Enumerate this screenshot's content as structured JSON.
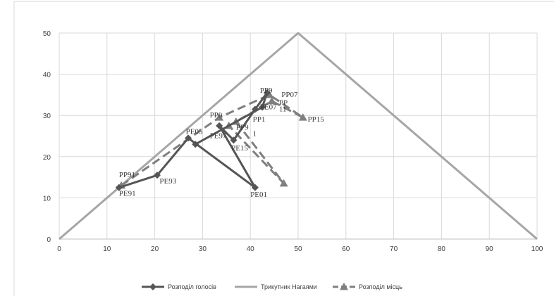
{
  "chart_data": {
    "type": "scatter",
    "title": "",
    "xlabel": "",
    "ylabel": "",
    "xlim": [
      0,
      100
    ],
    "ylim": [
      0,
      50
    ],
    "x_ticks": [
      "0",
      "10",
      "20",
      "30",
      "40",
      "50",
      "60",
      "70",
      "80",
      "90",
      "100"
    ],
    "y_ticks": [
      "0",
      "10",
      "20",
      "30",
      "40",
      "50"
    ],
    "grid": true,
    "legend_position": "bottom",
    "series": [
      {
        "name": "Розподіл голосів",
        "color": "#555555",
        "style": "solid",
        "marker": "diamond",
        "points": [
          {
            "x": 12.5,
            "y": 12.5
          },
          {
            "x": 20.5,
            "y": 15.5
          },
          {
            "x": 27,
            "y": 24.5
          },
          {
            "x": 41,
            "y": 12.5
          },
          {
            "x": 33.5,
            "y": 27.5
          },
          {
            "x": 36.5,
            "y": 24
          },
          {
            "x": 41,
            "y": 31.5
          },
          {
            "x": 43.5,
            "y": 35.5
          },
          {
            "x": 42.5,
            "y": 32
          },
          {
            "x": 28.5,
            "y": 23
          }
        ]
      },
      {
        "name": "Трикутник Нагаями",
        "color": "#a6a6a6",
        "style": "solid",
        "marker": "none",
        "points": [
          {
            "x": 0,
            "y": 0
          },
          {
            "x": 50,
            "y": 50
          },
          {
            "x": 100,
            "y": 0
          }
        ]
      },
      {
        "name": "Розподіл місць",
        "color": "#7f7f7f",
        "style": "dashed",
        "marker": "triangle",
        "points": [
          {
            "x": 13,
            "y": 13
          },
          {
            "x": 33.5,
            "y": 29.5
          },
          {
            "x": 44,
            "y": 35
          },
          {
            "x": 51,
            "y": 29.5
          },
          {
            "x": 44.5,
            "y": 33.5
          },
          {
            "x": 37,
            "y": 28.5
          },
          {
            "x": 47,
            "y": 13.5
          },
          {
            "x": 35.5,
            "y": 27.5
          }
        ]
      }
    ],
    "point_labels": [
      {
        "text": "РР91",
        "x": 12.5,
        "y": 15
      },
      {
        "text": "РЕ91",
        "x": 12.5,
        "y": 10.5
      },
      {
        "text": "РЕ93",
        "x": 21,
        "y": 13.5
      },
      {
        "text": "РЕ05",
        "x": 26.5,
        "y": 25.5
      },
      {
        "text": "РЕ97",
        "x": 31.5,
        "y": 24.5
      },
      {
        "text": "РР0",
        "x": 31.5,
        "y": 29.5
      },
      {
        "text": "РР9",
        "x": 37,
        "y": 26.5
      },
      {
        "text": "1",
        "x": 40.5,
        "y": 25
      },
      {
        "text": "РЕ15",
        "x": 36,
        "y": 21.5
      },
      {
        "text": "РР1",
        "x": 40.5,
        "y": 28.5
      },
      {
        "text": "РЕ07",
        "x": 42,
        "y": 31.5
      },
      {
        "text": "РР9",
        "x": 42,
        "y": 35.5
      },
      {
        "text": "РР07",
        "x": 46.5,
        "y": 34.5
      },
      {
        "text": "РР",
        "x": 46,
        "y": 32.5
      },
      {
        "text": "11",
        "x": 46,
        "y": 31
      },
      {
        "text": "РР15",
        "x": 52,
        "y": 28.5
      },
      {
        "text": "РЕ01",
        "x": 40,
        "y": 10.2
      }
    ]
  }
}
